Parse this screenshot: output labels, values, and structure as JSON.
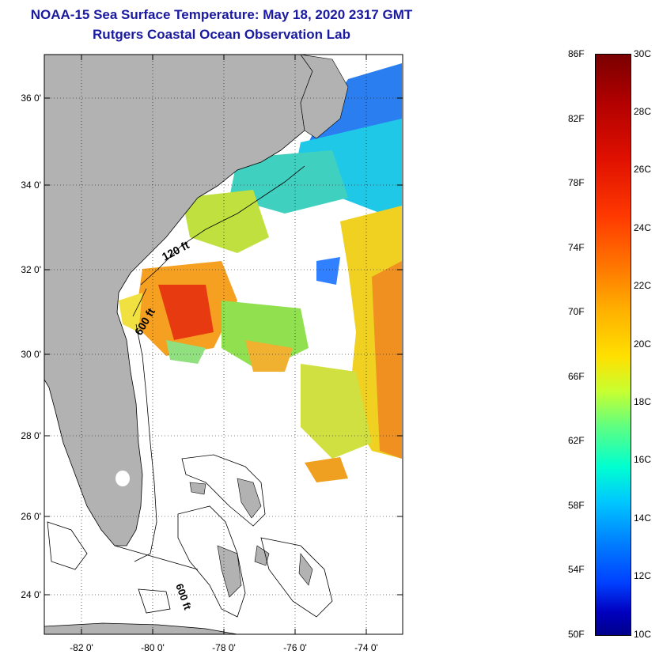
{
  "title": {
    "line1": "NOAA-15 Sea Surface Temperature:  May 18, 2020 2317 GMT",
    "line2": "Rutgers Coastal Ocean Observation Lab"
  },
  "map": {
    "lon_labels": [
      "-82 0'",
      "-80 0'",
      "-78 0'",
      "-76 0'",
      "-74 0'"
    ],
    "lat_labels": [
      "36 0'",
      "34 0'",
      "32 0'",
      "30 0'",
      "28 0'",
      "26 0'",
      "24 0'"
    ],
    "contour_labels": [
      "120 ft",
      "600 ft",
      "600 ft"
    ],
    "land_color": "#b2b2b2"
  },
  "colorbar": {
    "fahrenheit": [
      "86F",
      "82F",
      "78F",
      "74F",
      "70F",
      "66F",
      "62F",
      "58F",
      "54F",
      "50F"
    ],
    "celsius": [
      "30C",
      "28C",
      "26C",
      "24C",
      "22C",
      "20C",
      "18C",
      "16C",
      "14C",
      "12C",
      "10C"
    ]
  }
}
